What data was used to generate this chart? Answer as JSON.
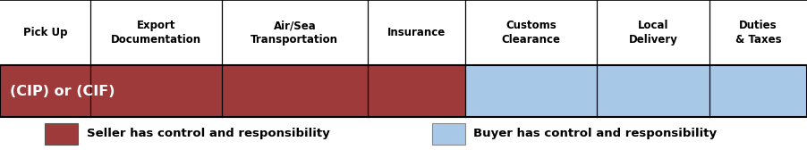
{
  "columns": [
    "Pick Up",
    "Export\nDocumentation",
    "Air/Sea\nTransportation",
    "Insurance",
    "Customs\nClearance",
    "Local\nDelivery",
    "Duties\n& Taxes"
  ],
  "col_widths": [
    0.88,
    1.28,
    1.42,
    0.95,
    1.28,
    1.1,
    0.95
  ],
  "seller_cols": [
    0,
    1,
    2,
    3
  ],
  "buyer_cols": [
    4,
    5,
    6
  ],
  "seller_color": "#9E3A3A",
  "buyer_color": "#A8C8E8",
  "bar_label": "(CIP) or (CIF)",
  "bar_label_color": "#FFFFFF",
  "legend_seller": "Seller has control and responsibility",
  "legend_buyer": "Buyer has control and responsibility",
  "background_color": "#FFFFFF",
  "header_fontsize": 8.5,
  "bar_label_fontsize": 11.5,
  "legend_fontsize": 9.5
}
